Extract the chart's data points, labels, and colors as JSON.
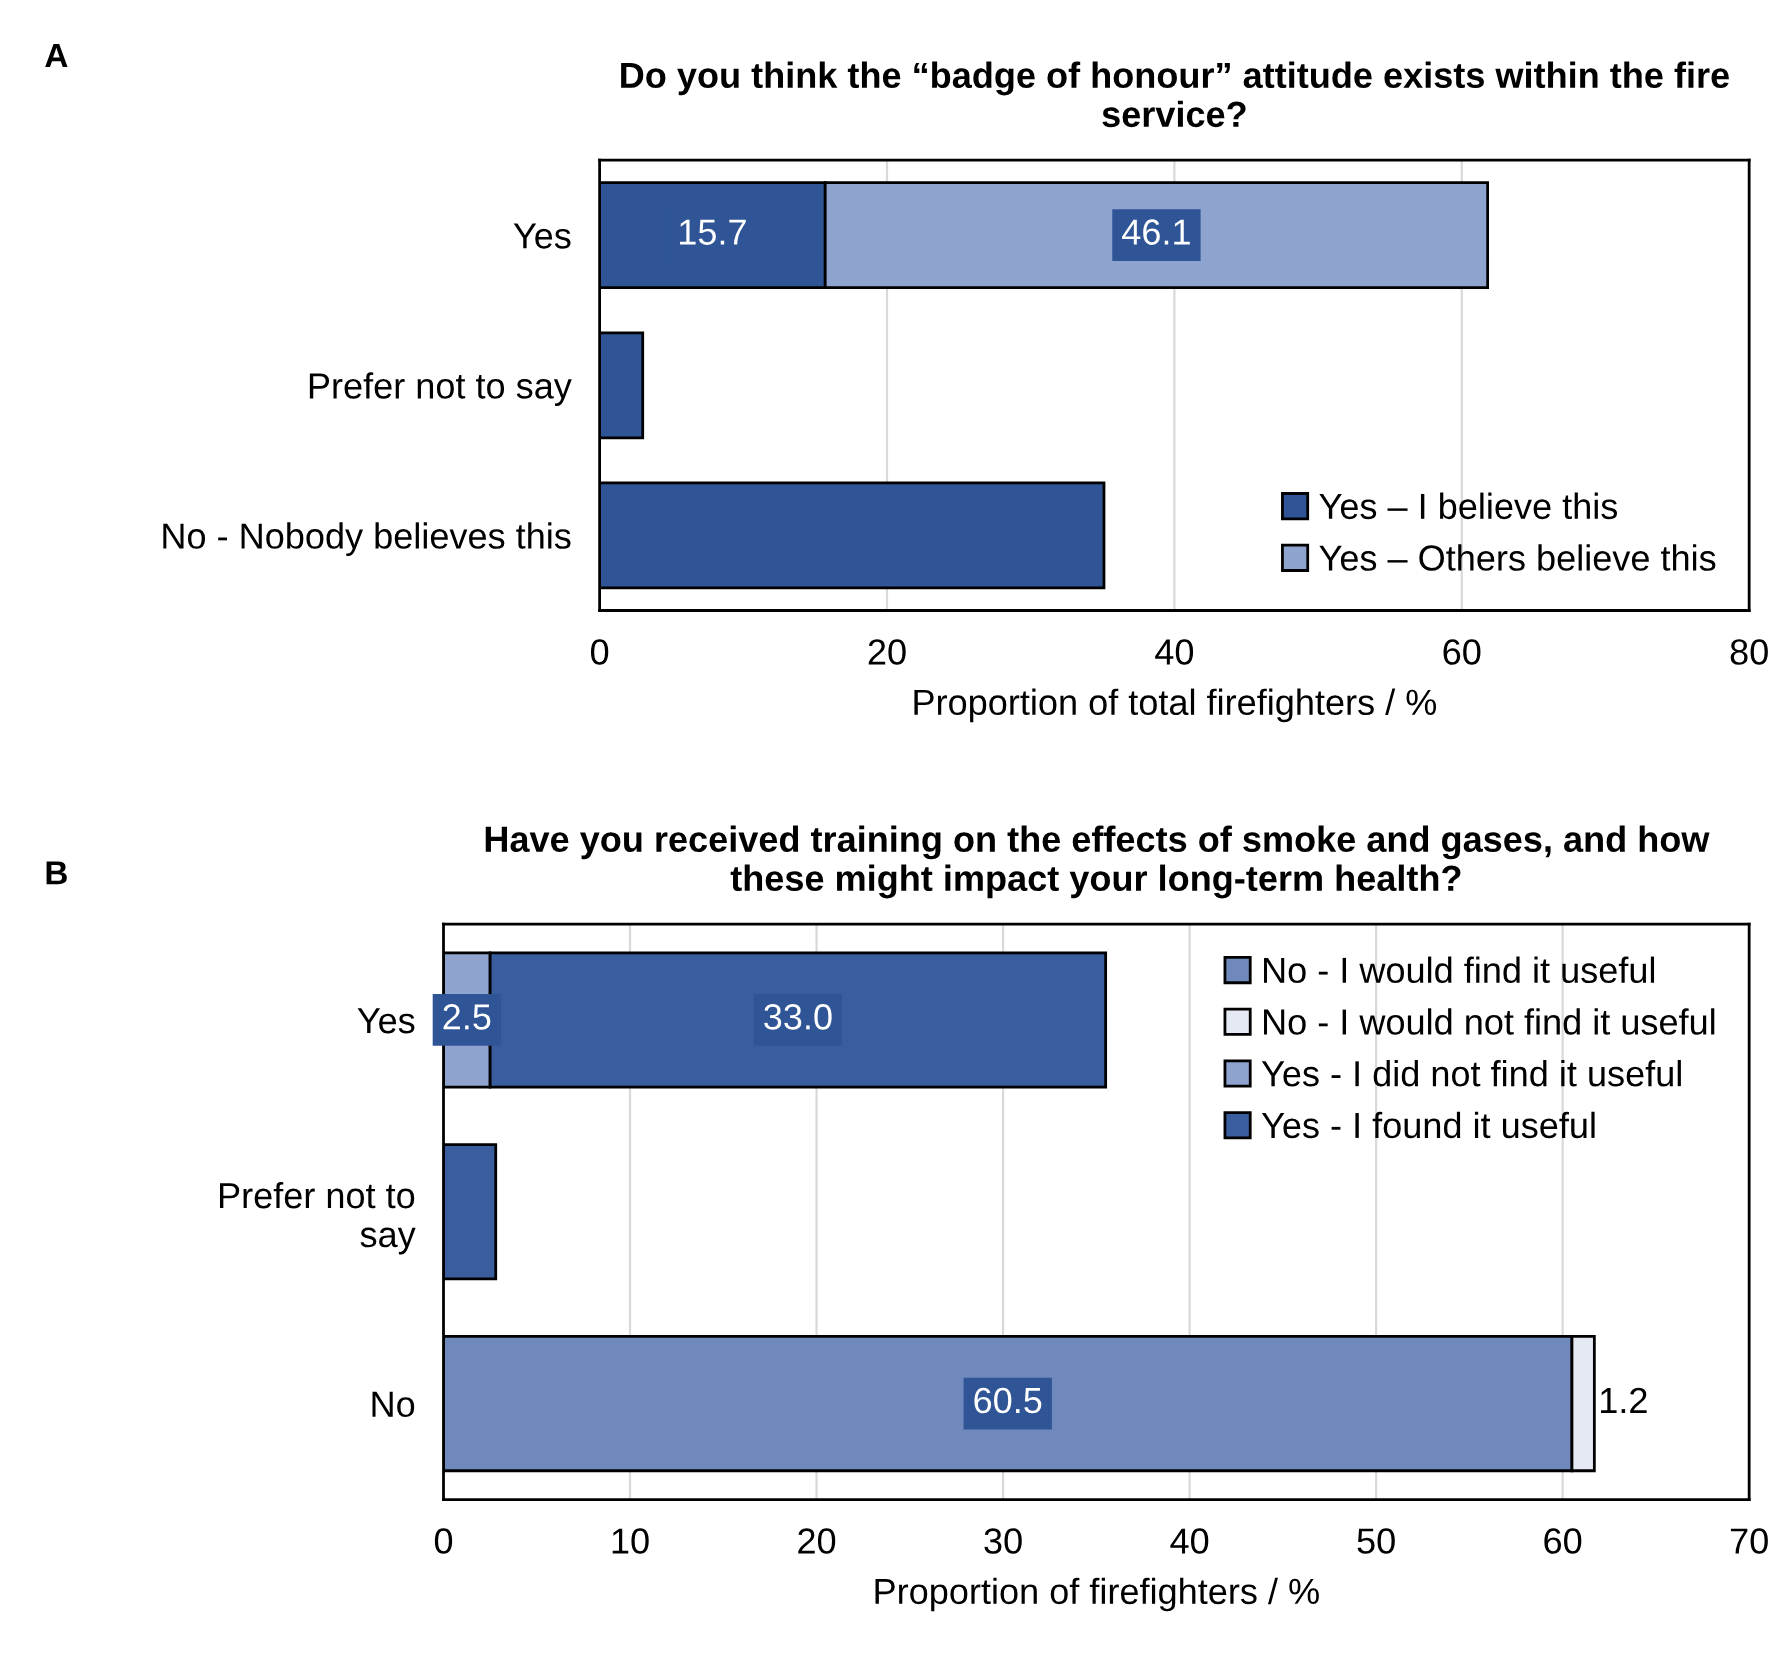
{
  "chart_data": [
    {
      "type": "bar",
      "orientation": "horizontal",
      "stacked": true,
      "title": "Do you think the “badge of honour” attitude exists within the fire\nservice?",
      "xlabel": "Proportion of total firefighters / %",
      "annotations": [
        "A"
      ],
      "categories": [
        "Yes",
        "Prefer not to say",
        "No - Nobody believes this"
      ],
      "xlim": [
        0,
        80
      ],
      "xticks": [
        0,
        20,
        40,
        60,
        80
      ],
      "grid": "x",
      "legend": "bottom right",
      "series": [
        {
          "name": "Yes – I believe this",
          "color": "#2f5597",
          "values": [
            15.7,
            3.0,
            35.1
          ],
          "value_labels": [
            "15.7",
            null,
            null
          ]
        },
        {
          "name": "Yes – Others believe this",
          "color": "#8ea3cd",
          "values": [
            46.1,
            null,
            null
          ],
          "value_labels": [
            "46.1",
            null,
            null
          ]
        }
      ]
    },
    {
      "type": "bar",
      "orientation": "horizontal",
      "stacked": true,
      "title": "Have you received training on the effects of smoke and gases, and how\nthese might impact your long-term health?",
      "xlabel": "Proportion of firefighters / %",
      "annotations": [
        "B"
      ],
      "categories": [
        "Yes",
        "Prefer not to\nsay",
        "No"
      ],
      "xlim": [
        0,
        70
      ],
      "xticks": [
        0,
        10,
        20,
        30,
        40,
        50,
        60,
        70
      ],
      "grid": "x",
      "legend": "top right",
      "series": [
        {
          "name": "No - I would find it useful",
          "color": "#7089bd",
          "values": [
            null,
            null,
            60.5
          ],
          "value_labels": [
            null,
            null,
            "60.5"
          ]
        },
        {
          "name": "No - I would not find it useful",
          "color": "#e4e9f3",
          "values": [
            null,
            null,
            1.2
          ],
          "value_labels": [
            null,
            null,
            "1.2"
          ]
        },
        {
          "name": "Yes - I did not find it useful",
          "color": "#8ea3cd",
          "values": [
            2.5,
            null,
            null
          ],
          "value_labels": [
            "2.5",
            null,
            null
          ]
        },
        {
          "name": "Yes - I found it useful",
          "color": "#3a5d9e",
          "values": [
            33.0,
            2.8,
            null
          ],
          "value_labels": [
            "33.0",
            null,
            null
          ]
        }
      ]
    }
  ]
}
